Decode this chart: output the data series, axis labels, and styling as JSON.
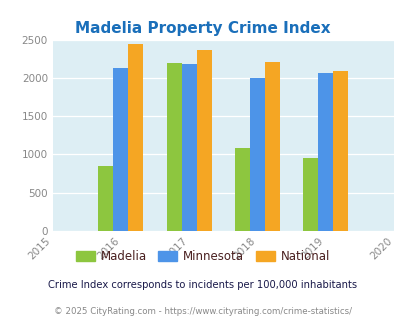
{
  "title": "Madelia Property Crime Index",
  "title_color": "#1a6fba",
  "years": [
    2016,
    2017,
    2018,
    2019
  ],
  "madelia": [
    850,
    2200,
    1090,
    960
  ],
  "minnesota": [
    2130,
    2185,
    2000,
    2065
  ],
  "national": [
    2445,
    2360,
    2210,
    2095
  ],
  "bar_colors": {
    "madelia": "#8dc63f",
    "minnesota": "#4d94e8",
    "national": "#f5a623"
  },
  "xlim": [
    2015,
    2020
  ],
  "ylim": [
    0,
    2500
  ],
  "yticks": [
    0,
    500,
    1000,
    1500,
    2000,
    2500
  ],
  "xticks": [
    2015,
    2016,
    2017,
    2018,
    2019,
    2020
  ],
  "fig_bg_color": "#ffffff",
  "plot_bg_color": "#ddeef4",
  "legend_labels": [
    "Madelia",
    "Minnesota",
    "National"
  ],
  "legend_text_color": "#4a2020",
  "footnote1": "Crime Index corresponds to incidents per 100,000 inhabitants",
  "footnote1_color": "#1a1a4a",
  "footnote2": "© 2025 CityRating.com - https://www.cityrating.com/crime-statistics/",
  "footnote2_color": "#888888",
  "bar_width": 0.22
}
